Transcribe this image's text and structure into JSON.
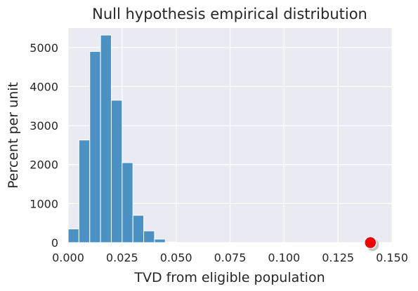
{
  "chart_data": {
    "type": "bar",
    "title": "Null hypothesis empirical distribution",
    "xlabel": "TVD from eligible population",
    "ylabel": "Percent per unit",
    "xlim": [
      0.0,
      0.15
    ],
    "ylim": [
      0,
      5500
    ],
    "x_ticks": [
      "0.000",
      "0.025",
      "0.050",
      "0.075",
      "0.100",
      "0.125",
      "0.150"
    ],
    "y_ticks": [
      "0",
      "1000",
      "2000",
      "3000",
      "4000",
      "5000"
    ],
    "grid": true,
    "bin_width": 0.005,
    "bins": [
      {
        "start": 0.0,
        "value": 350
      },
      {
        "start": 0.005,
        "value": 2630
      },
      {
        "start": 0.01,
        "value": 4900
      },
      {
        "start": 0.015,
        "value": 5320
      },
      {
        "start": 0.02,
        "value": 3650
      },
      {
        "start": 0.025,
        "value": 2050
      },
      {
        "start": 0.03,
        "value": 700
      },
      {
        "start": 0.035,
        "value": 300
      },
      {
        "start": 0.04,
        "value": 90
      },
      {
        "start": 0.045,
        "value": 15
      }
    ],
    "bar_color": "#4c91c3",
    "observed_point": {
      "x": 0.14,
      "y": 0,
      "color": "#ee0000"
    }
  }
}
